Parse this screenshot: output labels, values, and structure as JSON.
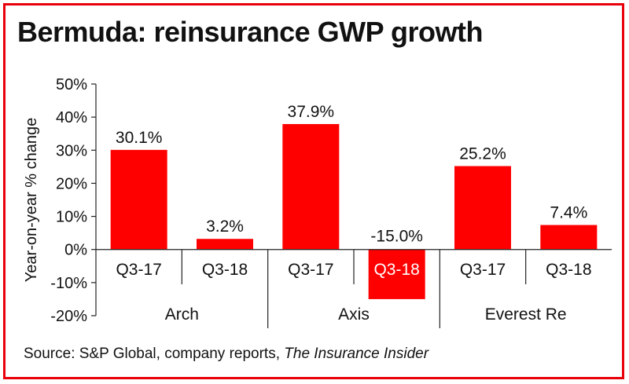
{
  "title": "Bermuda: reinsurance GWP growth",
  "source": {
    "prefix": "Source: S&P Global, company reports, ",
    "publication": "The Insurance Insider"
  },
  "colors": {
    "bar": "#ff0000",
    "border": "#e8000a",
    "text": "#111111",
    "axis": "#222222"
  },
  "chart_data": {
    "type": "bar",
    "title": "Bermuda: reinsurance GWP growth",
    "ylabel": "Year-on-year % change",
    "xlabel": "",
    "ylim": [
      -20,
      50
    ],
    "yticks": [
      50,
      40,
      30,
      20,
      10,
      0,
      -10,
      -20
    ],
    "ytick_labels": [
      "50%",
      "40%",
      "30%",
      "20%",
      "10%",
      "0%",
      "-10%",
      "-20%"
    ],
    "grid": false,
    "groups": [
      {
        "name": "Arch",
        "bars": [
          {
            "category": "Q3-17",
            "value": 30.1,
            "label": "30.1%"
          },
          {
            "category": "Q3-18",
            "value": 3.2,
            "label": "3.2%"
          }
        ]
      },
      {
        "name": "Axis",
        "bars": [
          {
            "category": "Q3-17",
            "value": 37.9,
            "label": "37.9%"
          },
          {
            "category": "Q3-18",
            "value": -15.0,
            "label": "-15.0%"
          }
        ]
      },
      {
        "name": "Everest Re",
        "bars": [
          {
            "category": "Q3-17",
            "value": 25.2,
            "label": "25.2%"
          },
          {
            "category": "Q3-18",
            "value": 7.4,
            "label": "7.4%"
          }
        ]
      }
    ]
  }
}
